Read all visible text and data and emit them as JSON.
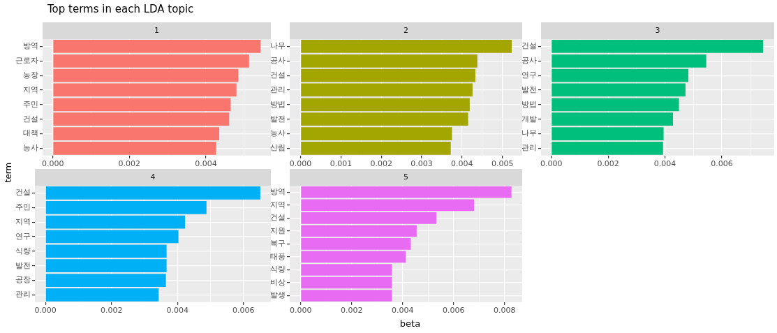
{
  "chart_data": [
    {
      "type": "bar",
      "orientation": "horizontal",
      "title": "Top terms in each LDA topic",
      "subtitle": "1",
      "ylabel": "term",
      "categories": [
        "방역",
        "근로자",
        "농장",
        "지역",
        "주민",
        "건설",
        "대책",
        "농사"
      ],
      "values": [
        0.00543,
        0.00513,
        0.00485,
        0.0048,
        0.00465,
        0.00461,
        0.00435,
        0.00427
      ],
      "color": "#f8766d",
      "xlim": [
        -0.00027,
        0.0057
      ],
      "xticks": [
        {
          "value": 0,
          "label": "0.000"
        },
        {
          "value": 0.001,
          "label": null
        },
        {
          "value": 0.002,
          "label": "0.002"
        },
        {
          "value": 0.003,
          "label": null
        },
        {
          "value": 0.004,
          "label": "0.004"
        },
        {
          "value": 0.005,
          "label": null
        }
      ],
      "grid": true
    },
    {
      "type": "bar",
      "orientation": "horizontal",
      "subtitle": "2",
      "categories": [
        "나무",
        "공사",
        "건설",
        "관리",
        "방법",
        "발전",
        "농사",
        "산림"
      ],
      "values": [
        0.00523,
        0.00438,
        0.00433,
        0.00426,
        0.00419,
        0.00415,
        0.00375,
        0.00372
      ],
      "color": "#a3a500",
      "xlim": [
        -0.00027,
        0.00549
      ],
      "xticks": [
        {
          "value": 0,
          "label": "0.000"
        },
        {
          "value": 0.0005,
          "label": null
        },
        {
          "value": 0.001,
          "label": "0.001"
        },
        {
          "value": 0.0015,
          "label": null
        },
        {
          "value": 0.002,
          "label": "0.002"
        },
        {
          "value": 0.0025,
          "label": null
        },
        {
          "value": 0.003,
          "label": "0.003"
        },
        {
          "value": 0.0035,
          "label": null
        },
        {
          "value": 0.004,
          "label": "0.004"
        },
        {
          "value": 0.0045,
          "label": null
        },
        {
          "value": 0.005,
          "label": "0.005"
        }
      ],
      "grid": true
    },
    {
      "type": "bar",
      "orientation": "horizontal",
      "subtitle": "3",
      "categories": [
        "건설",
        "공사",
        "연구",
        "발전",
        "방법",
        "개발",
        "나무",
        "관리"
      ],
      "values": [
        0.00745,
        0.00545,
        0.00482,
        0.00472,
        0.00449,
        0.00428,
        0.00395,
        0.00393
      ],
      "color": "#00bf7d",
      "xlim": [
        -0.00036,
        0.00784
      ],
      "xticks": [
        {
          "value": 0,
          "label": "0.000"
        },
        {
          "value": 0.001,
          "label": null
        },
        {
          "value": 0.002,
          "label": "0.002"
        },
        {
          "value": 0.003,
          "label": null
        },
        {
          "value": 0.004,
          "label": "0.004"
        },
        {
          "value": 0.005,
          "label": null
        },
        {
          "value": 0.006,
          "label": "0.006"
        },
        {
          "value": 0.007,
          "label": null
        }
      ],
      "grid": true
    },
    {
      "type": "bar",
      "orientation": "horizontal",
      "subtitle": "4",
      "categories": [
        "건설",
        "주민",
        "지역",
        "연구",
        "식량",
        "발전",
        "공장",
        "관리"
      ],
      "values": [
        0.00651,
        0.00488,
        0.00423,
        0.00403,
        0.00367,
        0.00367,
        0.00365,
        0.00343
      ],
      "color": "#00b0f6",
      "xlim": [
        -0.00032,
        0.00683
      ],
      "xticks": [
        {
          "value": 0,
          "label": "0.000"
        },
        {
          "value": 0.001,
          "label": null
        },
        {
          "value": 0.002,
          "label": "0.002"
        },
        {
          "value": 0.003,
          "label": null
        },
        {
          "value": 0.004,
          "label": "0.004"
        },
        {
          "value": 0.005,
          "label": null
        },
        {
          "value": 0.006,
          "label": "0.006"
        }
      ],
      "grid": true
    },
    {
      "type": "bar",
      "orientation": "horizontal",
      "subtitle": "5",
      "xlabel": "beta",
      "categories": [
        "방역",
        "지역",
        "건설",
        "지원",
        "복구",
        "태풍",
        "식량",
        "비상",
        "발생"
      ],
      "values": [
        0.00827,
        0.0068,
        0.00532,
        0.00455,
        0.00432,
        0.00412,
        0.00358,
        0.00358,
        0.00358
      ],
      "color": "#e76bf3",
      "xlim": [
        -0.00043,
        0.00869
      ],
      "xticks": [
        {
          "value": 0,
          "label": "0.000"
        },
        {
          "value": 0.001,
          "label": null
        },
        {
          "value": 0.002,
          "label": "0.002"
        },
        {
          "value": 0.003,
          "label": null
        },
        {
          "value": 0.004,
          "label": "0.004"
        },
        {
          "value": 0.005,
          "label": null
        },
        {
          "value": 0.006,
          "label": "0.006"
        },
        {
          "value": 0.007,
          "label": null
        },
        {
          "value": 0.008,
          "label": "0.008"
        }
      ],
      "grid": true
    }
  ]
}
